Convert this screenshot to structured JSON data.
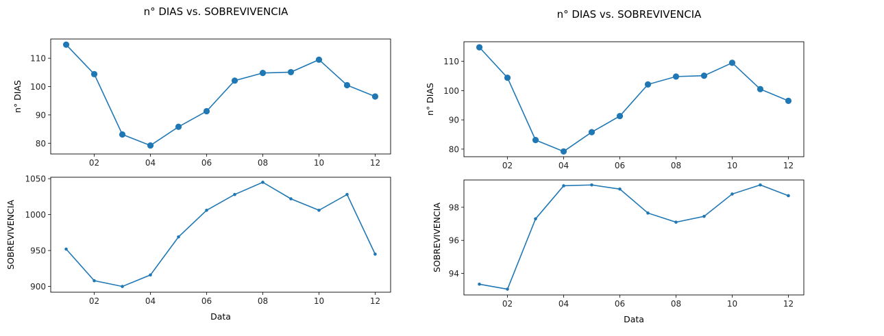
{
  "figures": [
    {
      "title": "n° DIAS vs. SOBREVIVENCIA"
    },
    {
      "title": "n° DIAS vs. SOBREVIVENCIA"
    }
  ],
  "chart_data": [
    {
      "type": "line",
      "title": "n° DIAS vs. SOBREVIVENCIA",
      "xlabel": "",
      "ylabel": "n° DIAS",
      "x": [
        1,
        2,
        3,
        4,
        5,
        6,
        7,
        8,
        9,
        10,
        11,
        12
      ],
      "xticks": [
        2,
        4,
        6,
        8,
        10,
        12
      ],
      "xticklabels": [
        "02",
        "04",
        "06",
        "08",
        "10",
        "12"
      ],
      "xlim": [
        0.45,
        12.55
      ],
      "yticks": [
        80,
        90,
        100,
        110
      ],
      "ylim": [
        76.2,
        116.8
      ],
      "series": [
        {
          "values": [
            114.8,
            104.4,
            83.1,
            79.2,
            85.8,
            91.3,
            102.1,
            104.8,
            105.1,
            109.5,
            100.5,
            96.5
          ]
        }
      ],
      "marker": "large",
      "color": "#1f77b4",
      "grid": false
    },
    {
      "type": "line",
      "xlabel": "Data",
      "ylabel": "SOBREVIVENCIA",
      "x": [
        1,
        2,
        3,
        4,
        5,
        6,
        7,
        8,
        9,
        10,
        11,
        12
      ],
      "xticks": [
        2,
        4,
        6,
        8,
        10,
        12
      ],
      "xticklabels": [
        "02",
        "04",
        "06",
        "08",
        "10",
        "12"
      ],
      "xlim": [
        0.45,
        12.55
      ],
      "yticks": [
        900,
        950,
        1000,
        1050
      ],
      "ylim": [
        892,
        1052
      ],
      "series": [
        {
          "values": [
            952,
            908,
            900,
            916,
            969,
            1006,
            1028,
            1045,
            1022,
            1006,
            1028,
            945
          ]
        }
      ],
      "marker": "small",
      "color": "#1f77b4",
      "grid": false
    },
    {
      "type": "line",
      "title": "n° DIAS vs. SOBREVIVENCIA",
      "xlabel": "",
      "ylabel": "n° DIAS",
      "x": [
        1,
        2,
        3,
        4,
        5,
        6,
        7,
        8,
        9,
        10,
        11,
        12
      ],
      "xticks": [
        2,
        4,
        6,
        8,
        10,
        12
      ],
      "xticklabels": [
        "02",
        "04",
        "06",
        "08",
        "10",
        "12"
      ],
      "xlim": [
        0.45,
        12.55
      ],
      "yticks": [
        80,
        90,
        100,
        110
      ],
      "ylim": [
        77.4,
        116.7
      ],
      "series": [
        {
          "values": [
            114.8,
            104.4,
            83.1,
            79.2,
            85.8,
            91.3,
            102.1,
            104.8,
            105.1,
            109.5,
            100.5,
            96.5
          ]
        }
      ],
      "marker": "large",
      "color": "#1f77b4",
      "grid": false
    },
    {
      "type": "line",
      "xlabel": "Data",
      "ylabel": "SOBREVIVENCIA",
      "x": [
        1,
        2,
        3,
        4,
        5,
        6,
        7,
        8,
        9,
        10,
        11,
        12
      ],
      "xticks": [
        2,
        4,
        6,
        8,
        10,
        12
      ],
      "xticklabels": [
        "02",
        "04",
        "06",
        "08",
        "10",
        "12"
      ],
      "xlim": [
        0.45,
        12.55
      ],
      "yticks": [
        94,
        96,
        98
      ],
      "ylim": [
        92.7,
        99.65
      ],
      "series": [
        {
          "values": [
            93.35,
            93.05,
            97.3,
            99.3,
            99.35,
            99.1,
            97.65,
            97.1,
            97.45,
            98.8,
            99.35,
            98.7
          ]
        }
      ],
      "marker": "small",
      "color": "#1f77b4",
      "grid": false
    }
  ]
}
